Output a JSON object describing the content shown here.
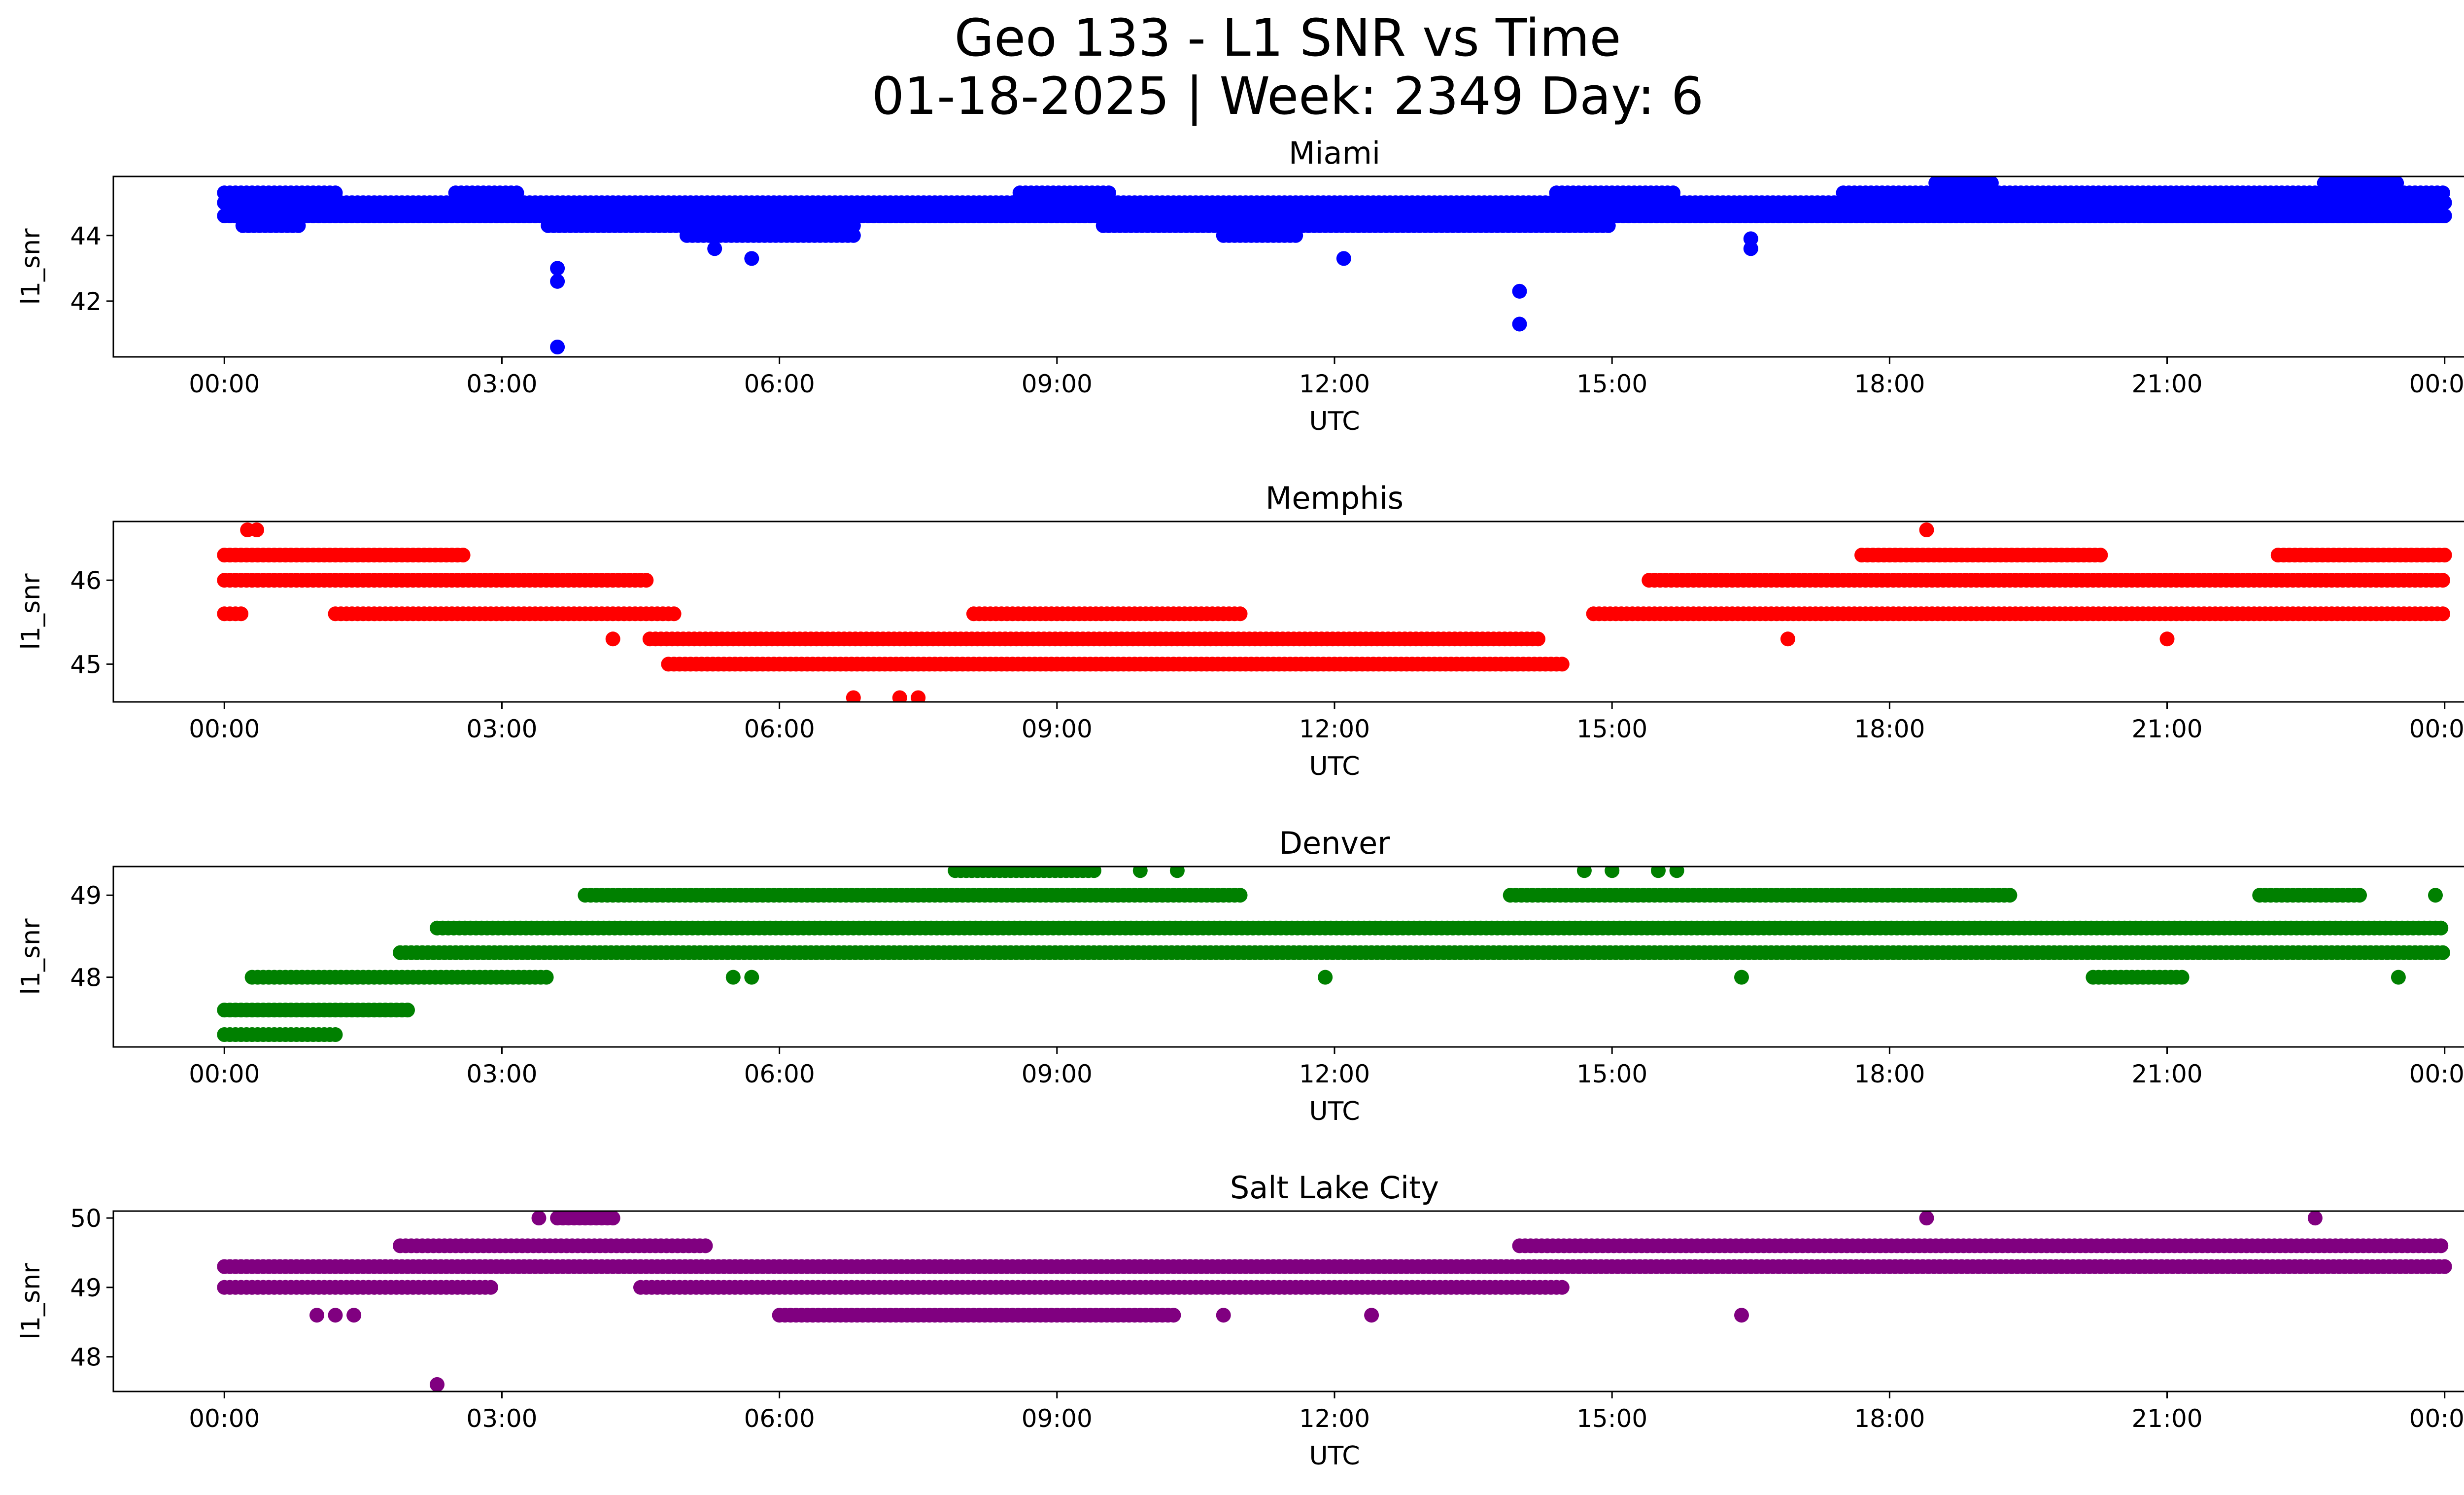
{
  "figure": {
    "title_line1": "Geo 133 - L1 SNR vs Time",
    "title_line2": "01-18-2025 | Week: 2349 Day: 6"
  },
  "chart_data": [
    {
      "type": "scatter",
      "title": "Miami",
      "xlabel": "UTC",
      "ylabel": "l1_snr",
      "color": "#0000ff",
      "xlim_hours": [
        -1.2,
        25.2
      ],
      "ylim": [
        40.3,
        45.8
      ],
      "yticks": [
        42,
        44
      ],
      "xticks": [
        "00:00",
        "03:00",
        "06:00",
        "09:00",
        "12:00",
        "15:00",
        "18:00",
        "21:00",
        "00:00"
      ],
      "levels": [
        44.3,
        44.6,
        45.0,
        45.3,
        45.6
      ],
      "bands": [
        {
          "from": 0.0,
          "to": 24.0,
          "values": [
            44.6,
            45.0
          ]
        },
        {
          "from": 0.0,
          "to": 1.2,
          "values": [
            45.3
          ]
        },
        {
          "from": 0.2,
          "to": 0.8,
          "values": [
            44.3
          ]
        },
        {
          "from": 2.5,
          "to": 3.2,
          "values": [
            45.3
          ]
        },
        {
          "from": 3.5,
          "to": 5.2,
          "values": [
            44.3
          ]
        },
        {
          "from": 5.0,
          "to": 6.8,
          "values": [
            44.0,
            44.3
          ]
        },
        {
          "from": 8.6,
          "to": 9.6,
          "values": [
            45.3
          ]
        },
        {
          "from": 9.5,
          "to": 15.0,
          "values": [
            44.3
          ]
        },
        {
          "from": 10.8,
          "to": 11.6,
          "values": [
            44.0
          ]
        },
        {
          "from": 14.4,
          "to": 15.7,
          "values": [
            45.3
          ]
        },
        {
          "from": 17.5,
          "to": 24.0,
          "values": [
            45.3
          ]
        },
        {
          "from": 18.5,
          "to": 19.1,
          "values": [
            45.6
          ]
        },
        {
          "from": 20.8,
          "to": 24.0,
          "values": [
            44.6
          ]
        },
        {
          "from": 22.7,
          "to": 23.5,
          "values": [
            45.6
          ]
        }
      ],
      "points": [
        {
          "t": 3.6,
          "v": 43.0
        },
        {
          "t": 3.6,
          "v": 42.6
        },
        {
          "t": 3.6,
          "v": 40.6
        },
        {
          "t": 5.3,
          "v": 43.6
        },
        {
          "t": 5.7,
          "v": 43.3
        },
        {
          "t": 12.1,
          "v": 43.3
        },
        {
          "t": 14.0,
          "v": 42.3
        },
        {
          "t": 14.0,
          "v": 41.3
        },
        {
          "t": 16.5,
          "v": 43.6
        },
        {
          "t": 16.5,
          "v": 43.9
        }
      ]
    },
    {
      "type": "scatter",
      "title": "Memphis",
      "xlabel": "UTC",
      "ylabel": "l1_snr",
      "color": "#ff0000",
      "xlim_hours": [
        -1.2,
        25.2
      ],
      "ylim": [
        44.55,
        46.7
      ],
      "yticks": [
        45,
        46
      ],
      "xticks": [
        "00:00",
        "03:00",
        "06:00",
        "09:00",
        "12:00",
        "15:00",
        "18:00",
        "21:00",
        "00:00"
      ],
      "levels": [
        44.6,
        45.0,
        45.3,
        45.6,
        46.0,
        46.3,
        46.6
      ],
      "bands": [
        {
          "from": 0.0,
          "to": 4.6,
          "values": [
            46.0
          ]
        },
        {
          "from": 0.0,
          "to": 2.6,
          "values": [
            46.3
          ]
        },
        {
          "from": 0.0,
          "to": 0.2,
          "values": [
            45.6
          ]
        },
        {
          "from": 1.2,
          "to": 4.9,
          "values": [
            45.6
          ]
        },
        {
          "from": 4.6,
          "to": 14.2,
          "values": [
            45.3
          ]
        },
        {
          "from": 4.8,
          "to": 14.5,
          "values": [
            45.0
          ]
        },
        {
          "from": 8.1,
          "to": 11.0,
          "values": [
            45.6
          ]
        },
        {
          "from": 14.8,
          "to": 24.0,
          "values": [
            45.6
          ]
        },
        {
          "from": 15.4,
          "to": 24.0,
          "values": [
            46.0
          ]
        },
        {
          "from": 17.7,
          "to": 20.3,
          "values": [
            46.3
          ]
        },
        {
          "from": 22.2,
          "to": 24.0,
          "values": [
            46.3
          ]
        }
      ],
      "points": [
        {
          "t": 0.25,
          "v": 46.6
        },
        {
          "t": 0.35,
          "v": 46.6
        },
        {
          "t": 6.8,
          "v": 44.6
        },
        {
          "t": 7.3,
          "v": 44.6
        },
        {
          "t": 7.5,
          "v": 44.6
        },
        {
          "t": 18.4,
          "v": 46.6
        },
        {
          "t": 21.0,
          "v": 45.3
        },
        {
          "t": 16.9,
          "v": 45.3
        },
        {
          "t": 4.2,
          "v": 45.3
        }
      ]
    },
    {
      "type": "scatter",
      "title": "Denver",
      "xlabel": "UTC",
      "ylabel": "l1_snr",
      "color": "#008000",
      "xlim_hours": [
        -1.2,
        25.2
      ],
      "ylim": [
        47.15,
        49.35
      ],
      "yticks": [
        48,
        49
      ],
      "xticks": [
        "00:00",
        "03:00",
        "06:00",
        "09:00",
        "12:00",
        "15:00",
        "18:00",
        "21:00",
        "00:00"
      ],
      "levels": [
        47.3,
        47.6,
        48.0,
        48.3,
        48.6,
        49.0,
        49.3
      ],
      "bands": [
        {
          "from": 0.0,
          "to": 1.2,
          "values": [
            47.3
          ]
        },
        {
          "from": 0.0,
          "to": 2.0,
          "values": [
            47.6
          ]
        },
        {
          "from": 0.3,
          "to": 3.5,
          "values": [
            48.0
          ]
        },
        {
          "from": 1.9,
          "to": 24.0,
          "values": [
            48.3
          ]
        },
        {
          "from": 2.3,
          "to": 24.0,
          "values": [
            48.6
          ]
        },
        {
          "from": 3.9,
          "to": 11.0,
          "values": [
            49.0
          ]
        },
        {
          "from": 13.9,
          "to": 19.3,
          "values": [
            49.0
          ]
        },
        {
          "from": 22.0,
          "to": 23.1,
          "values": [
            49.0
          ]
        },
        {
          "from": 20.2,
          "to": 21.2,
          "values": [
            48.0
          ]
        },
        {
          "from": 7.9,
          "to": 9.4,
          "values": [
            49.3
          ]
        }
      ],
      "points": [
        {
          "t": 5.5,
          "v": 48.0
        },
        {
          "t": 5.7,
          "v": 48.0
        },
        {
          "t": 11.9,
          "v": 48.0
        },
        {
          "t": 16.4,
          "v": 48.0
        },
        {
          "t": 23.5,
          "v": 48.0
        },
        {
          "t": 14.7,
          "v": 49.3
        },
        {
          "t": 15.0,
          "v": 49.3
        },
        {
          "t": 15.5,
          "v": 49.3
        },
        {
          "t": 15.7,
          "v": 49.3
        },
        {
          "t": 10.3,
          "v": 49.3
        },
        {
          "t": 9.9,
          "v": 49.3
        },
        {
          "t": 23.9,
          "v": 49.0
        }
      ]
    },
    {
      "type": "scatter",
      "title": "Salt Lake City",
      "xlabel": "UTC",
      "ylabel": "l1_snr",
      "color": "#800080",
      "xlim_hours": [
        -1.2,
        25.2
      ],
      "ylim": [
        47.5,
        50.1
      ],
      "yticks": [
        48,
        49,
        50
      ],
      "xticks": [
        "00:00",
        "03:00",
        "06:00",
        "09:00",
        "12:00",
        "15:00",
        "18:00",
        "21:00",
        "00:00"
      ],
      "levels": [
        47.6,
        48.6,
        49.0,
        49.3,
        49.6,
        50.0
      ],
      "bands": [
        {
          "from": 0.0,
          "to": 24.0,
          "values": [
            49.3
          ]
        },
        {
          "from": 0.0,
          "to": 2.9,
          "values": [
            49.0
          ]
        },
        {
          "from": 1.9,
          "to": 5.2,
          "values": [
            49.6
          ]
        },
        {
          "from": 4.5,
          "to": 14.5,
          "values": [
            49.0
          ]
        },
        {
          "from": 6.0,
          "to": 10.3,
          "values": [
            48.6
          ]
        },
        {
          "from": 14.0,
          "to": 24.0,
          "values": [
            49.6
          ]
        },
        {
          "from": 3.6,
          "to": 4.2,
          "values": [
            50.0
          ]
        }
      ],
      "points": [
        {
          "t": 1.0,
          "v": 48.6
        },
        {
          "t": 1.2,
          "v": 48.6
        },
        {
          "t": 1.4,
          "v": 48.6
        },
        {
          "t": 2.3,
          "v": 47.6
        },
        {
          "t": 3.4,
          "v": 50.0
        },
        {
          "t": 18.4,
          "v": 50.0
        },
        {
          "t": 22.6,
          "v": 50.0
        },
        {
          "t": 16.4,
          "v": 48.6
        },
        {
          "t": 10.8,
          "v": 48.6
        },
        {
          "t": 12.4,
          "v": 48.6
        }
      ]
    }
  ]
}
